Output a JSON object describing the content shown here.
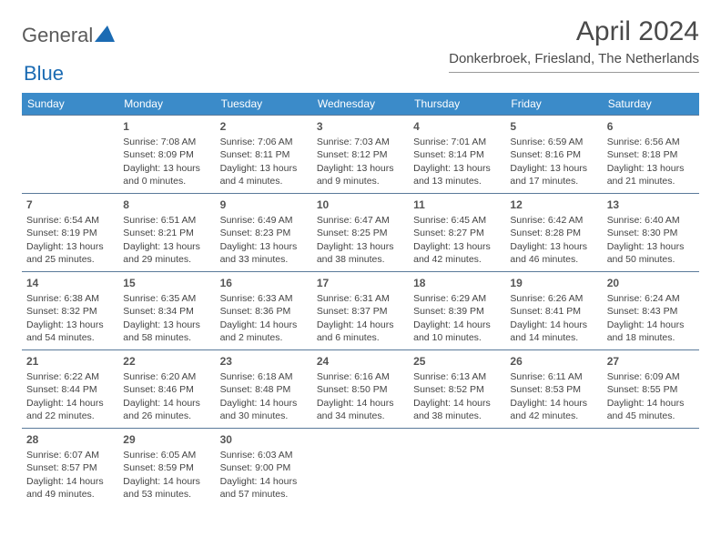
{
  "brand": {
    "name_left": "General",
    "name_right": "Blue"
  },
  "title": "April 2024",
  "location": "Donkerbroek, Friesland, The Netherlands",
  "colors": {
    "header_blue": "#3b8bc9",
    "brand_blue": "#1b6bb3",
    "text_gray": "#4a4a4a",
    "row_border": "#5a7a9a"
  },
  "weekdays": [
    "Sunday",
    "Monday",
    "Tuesday",
    "Wednesday",
    "Thursday",
    "Friday",
    "Saturday"
  ],
  "weeks": [
    [
      null,
      {
        "n": "1",
        "sr": "Sunrise: 7:08 AM",
        "ss": "Sunset: 8:09 PM",
        "dl": "Daylight: 13 hours and 0 minutes."
      },
      {
        "n": "2",
        "sr": "Sunrise: 7:06 AM",
        "ss": "Sunset: 8:11 PM",
        "dl": "Daylight: 13 hours and 4 minutes."
      },
      {
        "n": "3",
        "sr": "Sunrise: 7:03 AM",
        "ss": "Sunset: 8:12 PM",
        "dl": "Daylight: 13 hours and 9 minutes."
      },
      {
        "n": "4",
        "sr": "Sunrise: 7:01 AM",
        "ss": "Sunset: 8:14 PM",
        "dl": "Daylight: 13 hours and 13 minutes."
      },
      {
        "n": "5",
        "sr": "Sunrise: 6:59 AM",
        "ss": "Sunset: 8:16 PM",
        "dl": "Daylight: 13 hours and 17 minutes."
      },
      {
        "n": "6",
        "sr": "Sunrise: 6:56 AM",
        "ss": "Sunset: 8:18 PM",
        "dl": "Daylight: 13 hours and 21 minutes."
      }
    ],
    [
      {
        "n": "7",
        "sr": "Sunrise: 6:54 AM",
        "ss": "Sunset: 8:19 PM",
        "dl": "Daylight: 13 hours and 25 minutes."
      },
      {
        "n": "8",
        "sr": "Sunrise: 6:51 AM",
        "ss": "Sunset: 8:21 PM",
        "dl": "Daylight: 13 hours and 29 minutes."
      },
      {
        "n": "9",
        "sr": "Sunrise: 6:49 AM",
        "ss": "Sunset: 8:23 PM",
        "dl": "Daylight: 13 hours and 33 minutes."
      },
      {
        "n": "10",
        "sr": "Sunrise: 6:47 AM",
        "ss": "Sunset: 8:25 PM",
        "dl": "Daylight: 13 hours and 38 minutes."
      },
      {
        "n": "11",
        "sr": "Sunrise: 6:45 AM",
        "ss": "Sunset: 8:27 PM",
        "dl": "Daylight: 13 hours and 42 minutes."
      },
      {
        "n": "12",
        "sr": "Sunrise: 6:42 AM",
        "ss": "Sunset: 8:28 PM",
        "dl": "Daylight: 13 hours and 46 minutes."
      },
      {
        "n": "13",
        "sr": "Sunrise: 6:40 AM",
        "ss": "Sunset: 8:30 PM",
        "dl": "Daylight: 13 hours and 50 minutes."
      }
    ],
    [
      {
        "n": "14",
        "sr": "Sunrise: 6:38 AM",
        "ss": "Sunset: 8:32 PM",
        "dl": "Daylight: 13 hours and 54 minutes."
      },
      {
        "n": "15",
        "sr": "Sunrise: 6:35 AM",
        "ss": "Sunset: 8:34 PM",
        "dl": "Daylight: 13 hours and 58 minutes."
      },
      {
        "n": "16",
        "sr": "Sunrise: 6:33 AM",
        "ss": "Sunset: 8:36 PM",
        "dl": "Daylight: 14 hours and 2 minutes."
      },
      {
        "n": "17",
        "sr": "Sunrise: 6:31 AM",
        "ss": "Sunset: 8:37 PM",
        "dl": "Daylight: 14 hours and 6 minutes."
      },
      {
        "n": "18",
        "sr": "Sunrise: 6:29 AM",
        "ss": "Sunset: 8:39 PM",
        "dl": "Daylight: 14 hours and 10 minutes."
      },
      {
        "n": "19",
        "sr": "Sunrise: 6:26 AM",
        "ss": "Sunset: 8:41 PM",
        "dl": "Daylight: 14 hours and 14 minutes."
      },
      {
        "n": "20",
        "sr": "Sunrise: 6:24 AM",
        "ss": "Sunset: 8:43 PM",
        "dl": "Daylight: 14 hours and 18 minutes."
      }
    ],
    [
      {
        "n": "21",
        "sr": "Sunrise: 6:22 AM",
        "ss": "Sunset: 8:44 PM",
        "dl": "Daylight: 14 hours and 22 minutes."
      },
      {
        "n": "22",
        "sr": "Sunrise: 6:20 AM",
        "ss": "Sunset: 8:46 PM",
        "dl": "Daylight: 14 hours and 26 minutes."
      },
      {
        "n": "23",
        "sr": "Sunrise: 6:18 AM",
        "ss": "Sunset: 8:48 PM",
        "dl": "Daylight: 14 hours and 30 minutes."
      },
      {
        "n": "24",
        "sr": "Sunrise: 6:16 AM",
        "ss": "Sunset: 8:50 PM",
        "dl": "Daylight: 14 hours and 34 minutes."
      },
      {
        "n": "25",
        "sr": "Sunrise: 6:13 AM",
        "ss": "Sunset: 8:52 PM",
        "dl": "Daylight: 14 hours and 38 minutes."
      },
      {
        "n": "26",
        "sr": "Sunrise: 6:11 AM",
        "ss": "Sunset: 8:53 PM",
        "dl": "Daylight: 14 hours and 42 minutes."
      },
      {
        "n": "27",
        "sr": "Sunrise: 6:09 AM",
        "ss": "Sunset: 8:55 PM",
        "dl": "Daylight: 14 hours and 45 minutes."
      }
    ],
    [
      {
        "n": "28",
        "sr": "Sunrise: 6:07 AM",
        "ss": "Sunset: 8:57 PM",
        "dl": "Daylight: 14 hours and 49 minutes."
      },
      {
        "n": "29",
        "sr": "Sunrise: 6:05 AM",
        "ss": "Sunset: 8:59 PM",
        "dl": "Daylight: 14 hours and 53 minutes."
      },
      {
        "n": "30",
        "sr": "Sunrise: 6:03 AM",
        "ss": "Sunset: 9:00 PM",
        "dl": "Daylight: 14 hours and 57 minutes."
      },
      null,
      null,
      null,
      null
    ]
  ]
}
